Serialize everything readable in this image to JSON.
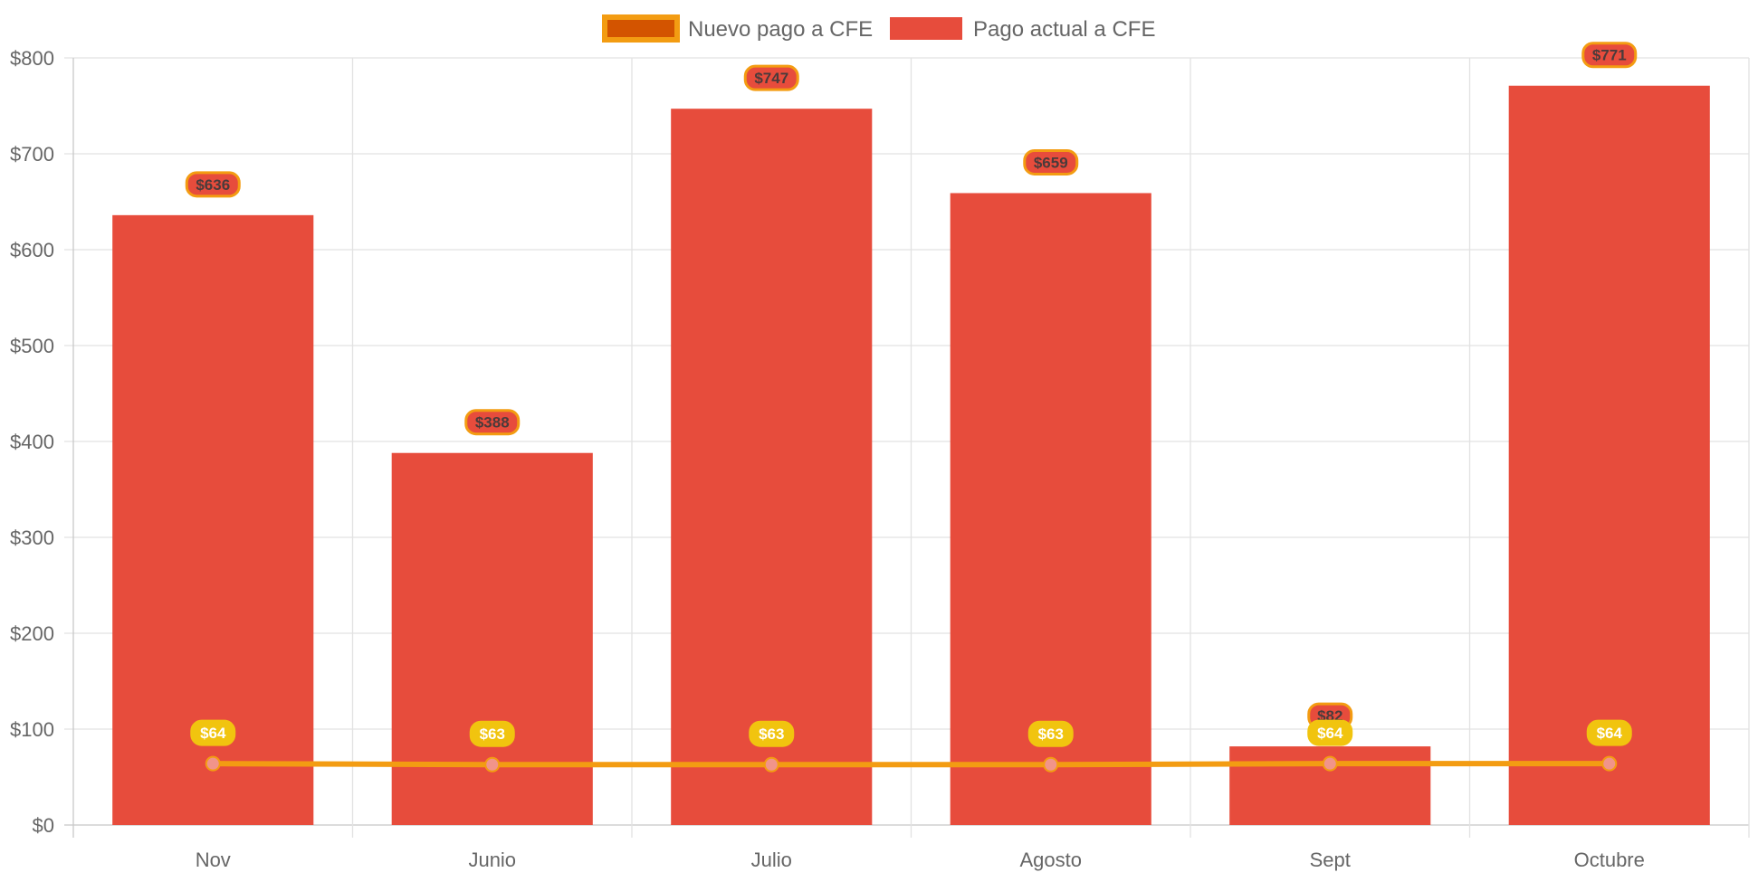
{
  "chart_data": {
    "type": "bar",
    "categories": [
      "Nov",
      "Junio",
      "Julio",
      "Agosto",
      "Sept",
      "Octubre"
    ],
    "series": [
      {
        "name": "Nuevo pago a CFE",
        "type": "line",
        "values": [
          64,
          63,
          63,
          63,
          64,
          64
        ],
        "labels": [
          "$64",
          "$63",
          "$63",
          "$63",
          "$64",
          "$64"
        ],
        "color": "#f39c12",
        "legend_fill": "#d35400",
        "point_color": "#f1948a",
        "label_bg": "#f1c40f"
      },
      {
        "name": "Pago actual a CFE",
        "type": "bar",
        "values": [
          636,
          388,
          747,
          659,
          82,
          771
        ],
        "labels": [
          "$636",
          "$388",
          "$747",
          "$659",
          "$82",
          "$771"
        ],
        "color": "#e74c3c",
        "label_border": "#f39c12"
      }
    ],
    "y_tick_labels": [
      "$0",
      "$100",
      "$200",
      "$300",
      "$400",
      "$500",
      "$600",
      "$700",
      "$800"
    ],
    "ylim": [
      0,
      800
    ],
    "y_step": 100,
    "grid": true,
    "legend": "top-center",
    "title": "",
    "xlabel": "",
    "ylabel": ""
  }
}
